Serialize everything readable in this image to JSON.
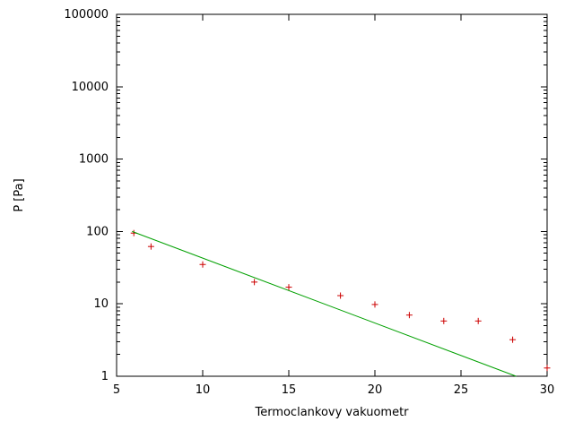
{
  "chart_data": {
    "type": "scatter",
    "title": "",
    "xlabel": "Termoclankovy vakuometr",
    "ylabel": "P [Pa]",
    "x_ticks": [
      5,
      10,
      15,
      20,
      25,
      30
    ],
    "y_ticks": [
      1,
      10,
      100,
      1000,
      10000,
      100000
    ],
    "xlim": [
      5,
      30
    ],
    "ylim": [
      1,
      100000
    ],
    "y_scale": "log",
    "grid": false,
    "legend": "none",
    "colors": {
      "points": "#cc0000",
      "fit_line": "#00a000",
      "axis": "#000000",
      "background": "#ffffff"
    },
    "series": [
      {
        "name": "measured-points",
        "type": "points",
        "marker": "plus",
        "color": "#cc0000",
        "points": [
          [
            6,
            95
          ],
          [
            7,
            62
          ],
          [
            10,
            35
          ],
          [
            13,
            20
          ],
          [
            15,
            17
          ],
          [
            18,
            13
          ],
          [
            20,
            9.8
          ],
          [
            22,
            7
          ],
          [
            24,
            5.8
          ],
          [
            26,
            5.8
          ],
          [
            28,
            3.2
          ],
          [
            30,
            1.3
          ]
        ]
      },
      {
        "name": "exponential-fit",
        "type": "line",
        "color": "#00a000",
        "points": [
          [
            5.9,
            100
          ],
          [
            28.2,
            1
          ]
        ]
      }
    ]
  }
}
